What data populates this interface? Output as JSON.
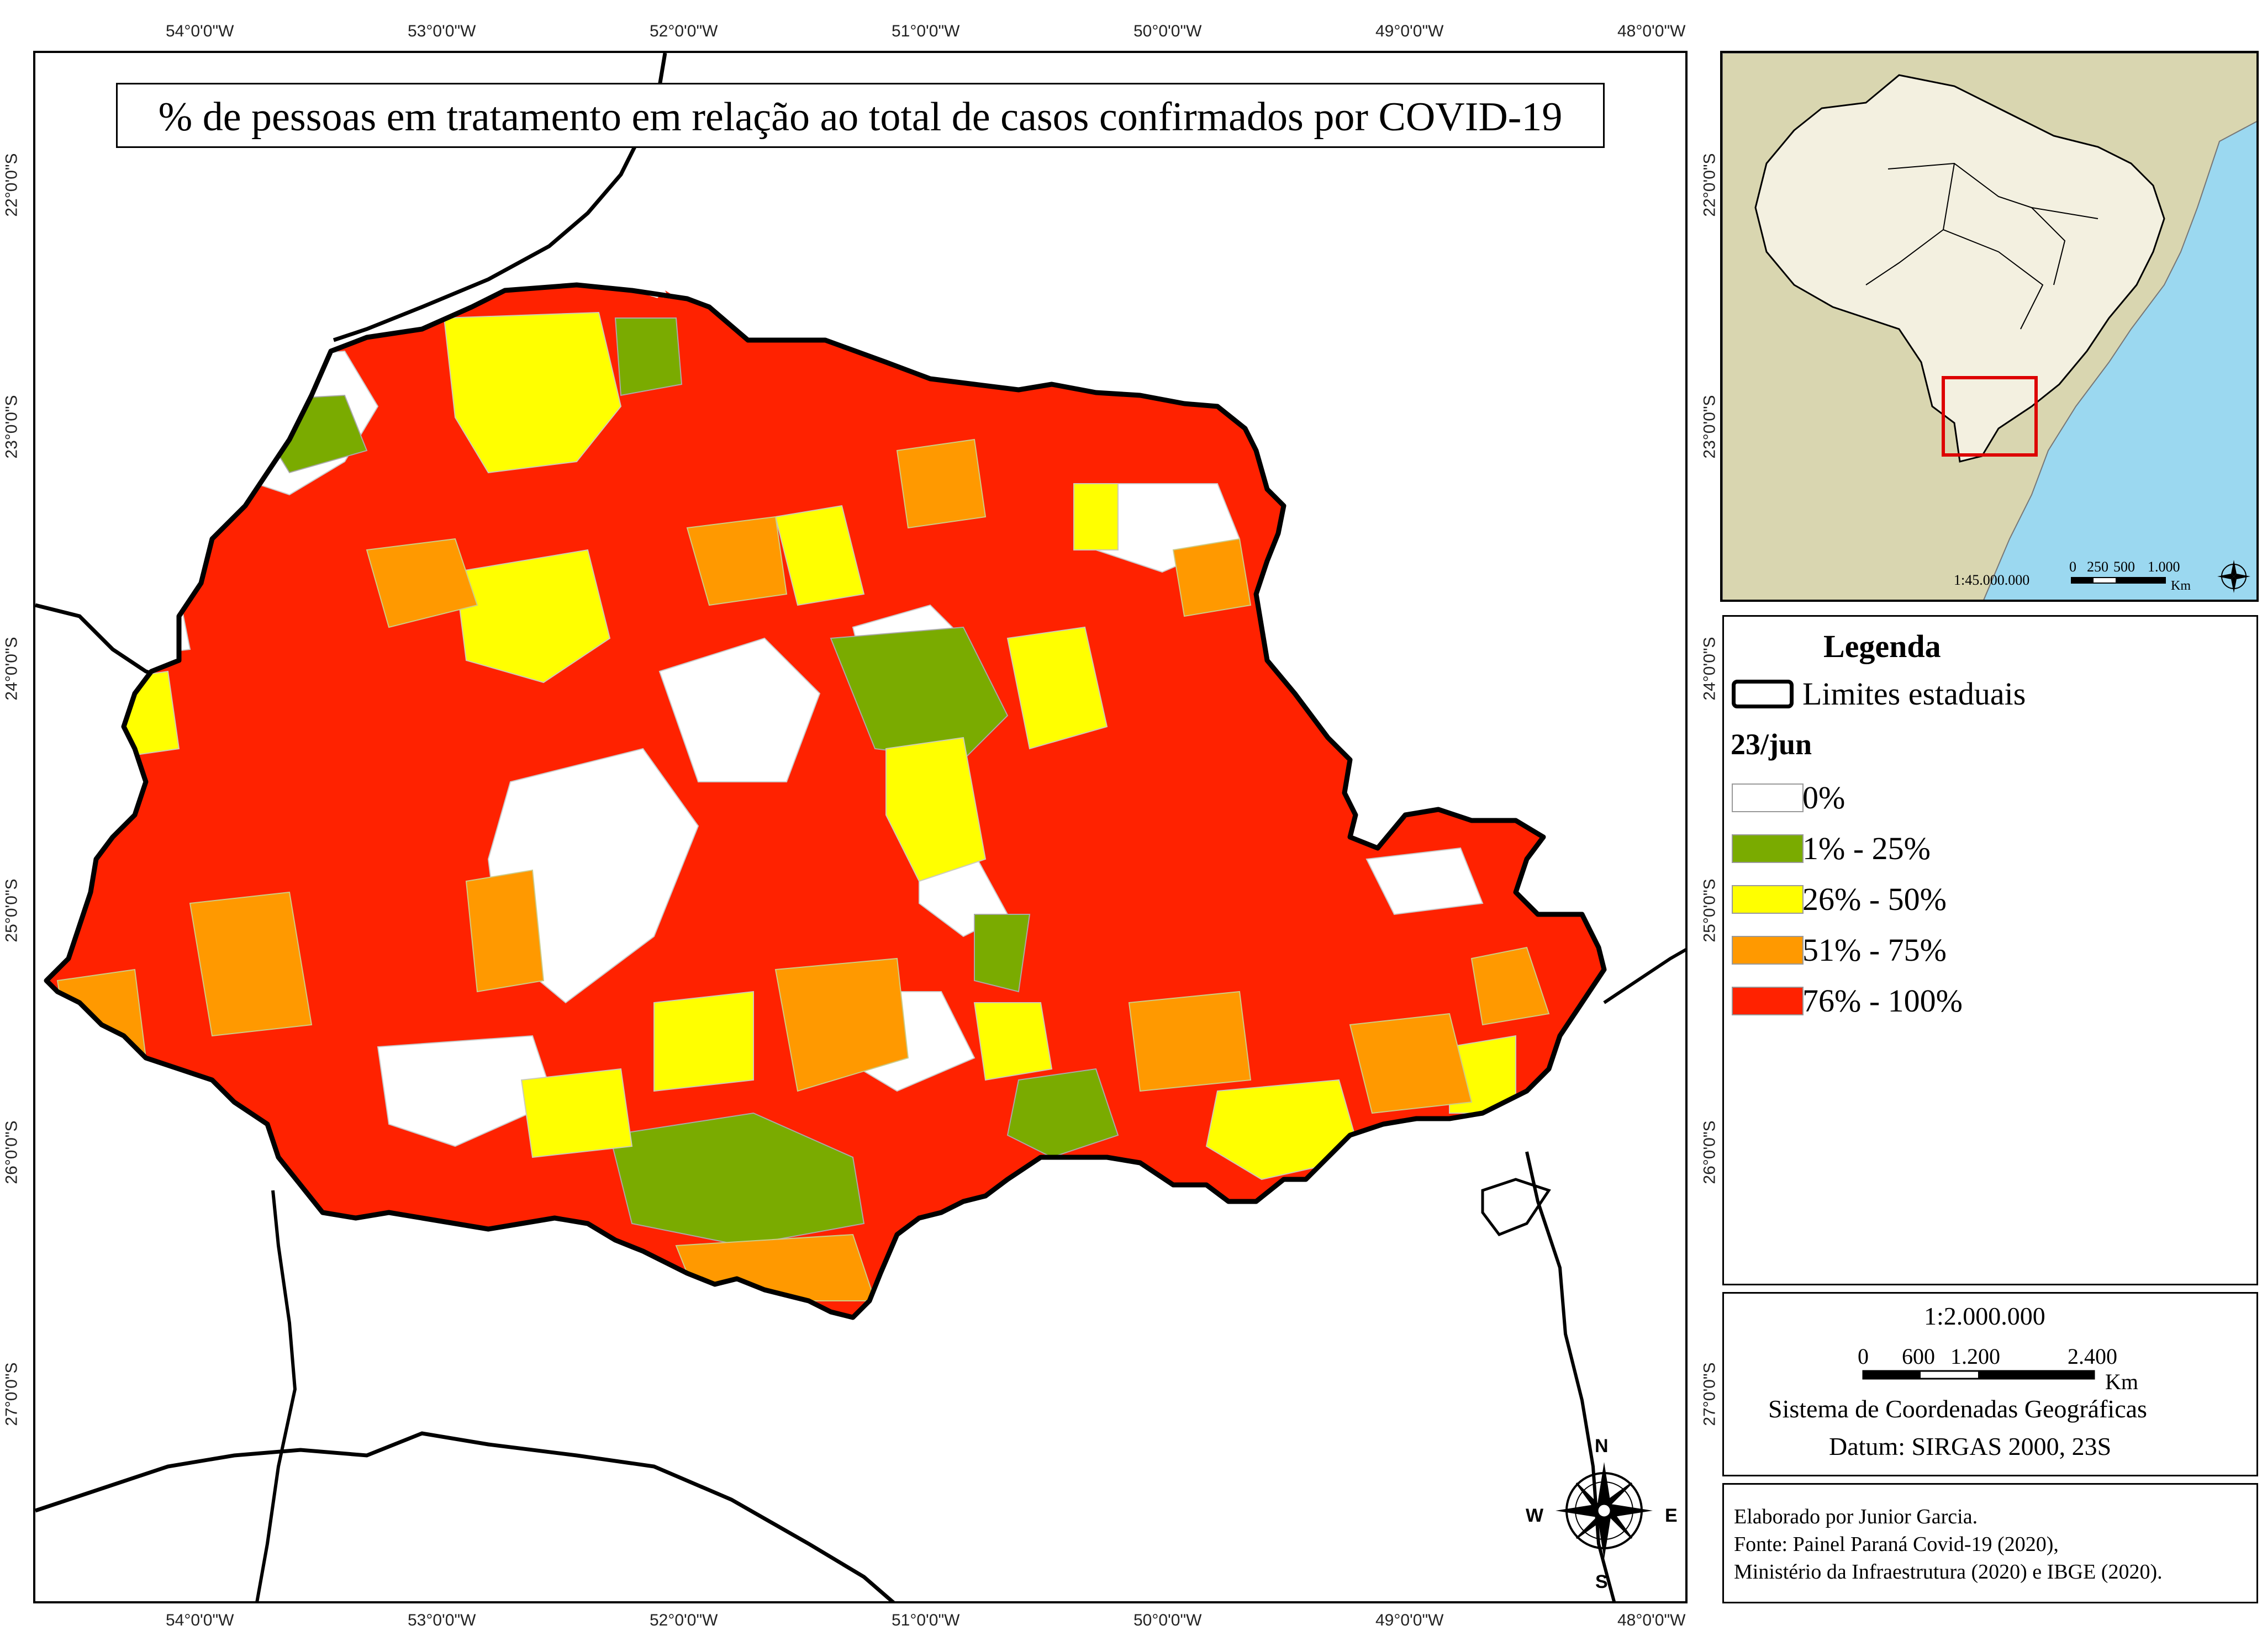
{
  "title": "% de pessoas em tratamento em relação ao total de casos confirmados por COVID-19",
  "top_ticks": [
    "54°0'0\"W",
    "53°0'0\"W",
    "52°0'0\"W",
    "51°0'0\"W",
    "50°0'0\"W",
    "49°0'0\"W",
    "48°0'0\"W"
  ],
  "bottom_ticks": [
    "54°0'0\"W",
    "53°0'0\"W",
    "52°0'0\"W",
    "51°0'0\"W",
    "50°0'0\"W",
    "49°0'0\"W",
    "48°0'0\"W"
  ],
  "left_ticks": [
    "22°0'0\"S",
    "23°0'0\"S",
    "24°0'0\"S",
    "25°0'0\"S",
    "26°0'0\"S",
    "27°0'0\"S"
  ],
  "right_ticks": [
    "22°0'0\"S",
    "23°0'0\"S",
    "24°0'0\"S",
    "25°0'0\"S",
    "26°0'0\"S",
    "27°0'0\"S"
  ],
  "inset": {
    "scale_text": "1:45.000.000",
    "scale_numbers": [
      "0",
      "250",
      "500",
      "1.000"
    ],
    "scale_unit": "Km"
  },
  "legend": {
    "title": "Legenda",
    "state_limits_label": "Limites estaduais",
    "date_label": "23/jun",
    "classes": [
      {
        "label": "0%",
        "color": "#ffffff"
      },
      {
        "label": "1% - 25%",
        "color": "#7aab00"
      },
      {
        "label": "26% - 50%",
        "color": "#ffff00"
      },
      {
        "label": "51% - 75%",
        "color": "#ff9900"
      },
      {
        "label": "76% - 100%",
        "color": "#ff2200"
      }
    ]
  },
  "scale": {
    "ratio": "1:2.000.000",
    "numbers": [
      "0",
      "600",
      "1.200",
      "2.400"
    ],
    "unit": "Km",
    "coord_system": "Sistema de Coordenadas Geográficas",
    "datum": "Datum: SIRGAS 2000, 23S"
  },
  "compass": {
    "n": "N",
    "s": "S",
    "e": "E",
    "w": "W"
  },
  "credits": [
    "Elaborado por Junior Garcia.",
    "Fonte: Painel Paraná Covid-19 (2020),",
    "Ministério da Infraestrutura (2020) e IBGE (2020)."
  ],
  "colors": {
    "none": "#ffffff",
    "low": "#7aab00",
    "mid": "#ffff00",
    "high": "#ff9900",
    "very_high": "#ff2200",
    "ocean": "#9bd8f0",
    "land": "#d9d6b0",
    "brazil": "#f3f0e0",
    "inset_box": "#dd0000"
  }
}
